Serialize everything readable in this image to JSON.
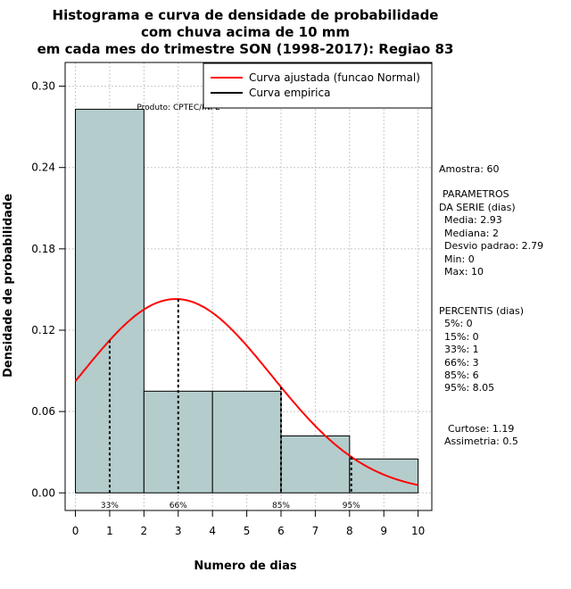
{
  "chart_data": {
    "type": "bar",
    "title": [
      "Histograma e curva de densidade de probabilidade",
      "com chuva acima de 10 mm",
      "em cada mes do trimestre SON (1998-2017): Regiao 83"
    ],
    "xlabel": "Numero de dias",
    "ylabel": "Densidade de probabilidade",
    "xlim": [
      -0.3,
      10.4
    ],
    "ylim": [
      -0.013,
      0.3175
    ],
    "xticks": [
      0,
      1,
      2,
      3,
      4,
      5,
      6,
      7,
      8,
      9,
      10
    ],
    "yticks": [
      0.0,
      0.06,
      0.12,
      0.18,
      0.24,
      0.3
    ],
    "ytick_labels": [
      "0.00",
      "0.06",
      "0.12",
      "0.18",
      "0.24",
      "0.30"
    ],
    "bins": [
      {
        "x0": 0,
        "x1": 2,
        "density": 0.283
      },
      {
        "x0": 2,
        "x1": 4,
        "density": 0.075
      },
      {
        "x0": 4,
        "x1": 6,
        "density": 0.075
      },
      {
        "x0": 6,
        "x1": 8,
        "density": 0.042
      },
      {
        "x0": 8,
        "x1": 10,
        "density": 0.025
      }
    ],
    "fitted_curve": {
      "name": "Curva ajustada (funcao Normal)",
      "mean": 2.93,
      "sd": 2.79,
      "x_range": [
        0,
        10
      ],
      "color": "#ff0000"
    },
    "empirical_curve": {
      "name": "Curva empirica",
      "color": "#000000"
    },
    "percentile_markers": [
      {
        "x": 1,
        "label": "33%"
      },
      {
        "x": 3,
        "label": "66%"
      },
      {
        "x": 6,
        "label": "85%"
      },
      {
        "x": 8.05,
        "label": "95%"
      }
    ],
    "watermark": "Produto: CPTEC/INPE",
    "bar_color": "#b4cccc",
    "grid": true,
    "legend_position": "top-right"
  },
  "sidebar": {
    "amostra": "Amostra: 60",
    "parametros": [
      "PARAMETROS",
      "DA SERIE (dias)",
      "Media: 2.93",
      "Mediana: 2",
      "Desvio padrao: 2.79",
      "Min: 0",
      "Max: 10"
    ],
    "percentis": [
      "PERCENTIS (dias)",
      "5%: 0",
      "15%: 0",
      "33%: 1",
      "66%: 3",
      "85%: 6",
      "95%: 8.05"
    ],
    "momentos": [
      "Curtose: 1.19",
      "Assimetria: 0.5"
    ]
  }
}
